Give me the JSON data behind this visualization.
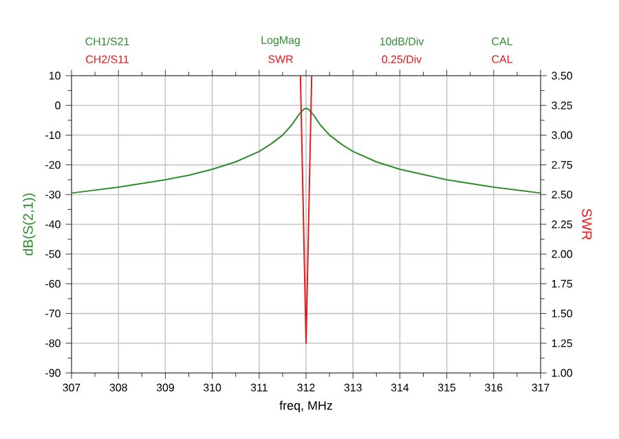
{
  "chart_data": {
    "type": "line",
    "xlabel": "freq, MHz",
    "ylabel": "dB(S(2,1))",
    "y2label": "SWR",
    "annotations": [
      "CH1/S21",
      "CH2/S11",
      "LogMag",
      "SWR",
      "10dB/Div",
      "0.25/Div",
      "CAL",
      "CAL"
    ],
    "xlim": [
      307,
      317
    ],
    "xticks": [
      307,
      308,
      309,
      310,
      311,
      312,
      313,
      314,
      315,
      316,
      317
    ],
    "ylim": [
      -90,
      10
    ],
    "yticks": [
      -90,
      -80,
      -70,
      -60,
      -50,
      -40,
      -30,
      -20,
      -10,
      0,
      10
    ],
    "y2lim": [
      1.0,
      3.5
    ],
    "y2ticks": [
      {
        "value": 1.0,
        "label": "1.00"
      },
      1.25,
      {
        "value": 1.5,
        "label": "1.50"
      },
      1.75,
      {
        "value": 2.0,
        "label": "2.00"
      },
      2.25,
      {
        "value": 2.5,
        "label": "2.50"
      },
      2.75,
      {
        "value": 3.0,
        "label": "3.00"
      },
      3.25,
      {
        "value": 3.5,
        "label": "3.50"
      }
    ],
    "grid": true,
    "series": [
      {
        "color": "#2e8b2e",
        "x": [
          307,
          308,
          309,
          309.5,
          310,
          310.5,
          311,
          311.25,
          311.5,
          311.7,
          311.85,
          311.95,
          312,
          312.05,
          312.15,
          312.3,
          312.5,
          312.75,
          313,
          313.5,
          314,
          315,
          316,
          317
        ],
        "values": [
          -29.5,
          -27.5,
          -25,
          -23.5,
          -21.5,
          -19,
          -15.5,
          -13,
          -10,
          -6.5,
          -3,
          -1.3,
          -1,
          -1.3,
          -3,
          -6.5,
          -10,
          -13,
          -15.5,
          -19,
          -21.5,
          -25,
          -27.5,
          -29.5
        ]
      },
      {
        "color": "#e41a1a",
        "axis": "y2",
        "x": [
          311.88,
          312,
          312.12
        ],
        "values": [
          3.5,
          1.25,
          3.5
        ]
      }
    ]
  }
}
